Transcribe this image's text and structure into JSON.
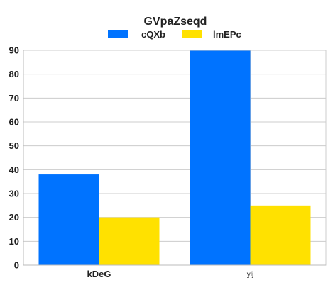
{
  "chart_data": {
    "type": "bar",
    "title": "GVpaZseqd",
    "xlabel": "",
    "ylabel": "",
    "categories": [
      "kDeG",
      "ylj"
    ],
    "series": [
      {
        "name": "cQXb",
        "values": [
          38,
          90
        ],
        "color": "#0073ff"
      },
      {
        "name": "lmEPc",
        "values": [
          20,
          25
        ],
        "color": "#ffe100"
      }
    ],
    "ylim": [
      0,
      90
    ],
    "yticks": [
      0,
      10,
      20,
      30,
      40,
      50,
      60,
      70,
      80,
      90
    ],
    "grid": true,
    "legend_position": "top-center"
  }
}
